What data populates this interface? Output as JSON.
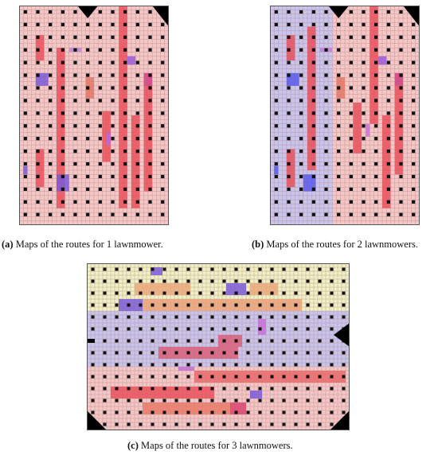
{
  "panels": [
    {
      "id": "a",
      "caption_label": "a",
      "caption_text": "Maps of the routes for 1 lawnmower.",
      "grid_cols": 36,
      "grid_rows": 52,
      "base_color": "#f4c6c6",
      "line_color": "#b28686",
      "obstacles": [
        {
          "type": "tri-down",
          "col": 14,
          "row": 0,
          "w": 5,
          "h": 3
        },
        {
          "type": "tri-ul",
          "col": 32,
          "row": 0,
          "w": 4,
          "h": 5
        }
      ],
      "regions": [],
      "blocks": [
        {
          "col": 24,
          "row": 0,
          "w": 2,
          "h": 48,
          "color": "#e8505a"
        },
        {
          "col": 9,
          "row": 10,
          "w": 2,
          "h": 38,
          "color": "#e8505a"
        },
        {
          "col": 4,
          "row": 7,
          "w": 2,
          "h": 6,
          "color": "#e8505a"
        },
        {
          "col": 4,
          "row": 34,
          "w": 2,
          "h": 9,
          "color": "#e8505a"
        },
        {
          "col": 20,
          "row": 25,
          "w": 2,
          "h": 12,
          "color": "#e8505a"
        },
        {
          "col": 27,
          "row": 26,
          "w": 2,
          "h": 22,
          "color": "#e8505a"
        },
        {
          "col": 30,
          "row": 16,
          "w": 2,
          "h": 28,
          "color": "#e8505a"
        },
        {
          "col": 16,
          "row": 17,
          "w": 2,
          "h": 5,
          "color": "#e07565"
        },
        {
          "col": 4,
          "row": 16,
          "w": 3,
          "h": 3,
          "color": "#7a5ad8"
        },
        {
          "col": 9,
          "row": 40,
          "w": 3,
          "h": 4,
          "color": "#7a5ad8"
        },
        {
          "col": 1,
          "row": 38,
          "w": 1,
          "h": 2,
          "color": "#7a5ad8"
        },
        {
          "col": 12,
          "row": 10,
          "w": 3,
          "h": 1,
          "color": "#c080d8"
        },
        {
          "col": 26,
          "row": 12,
          "w": 2,
          "h": 2,
          "color": "#9a5ad8"
        },
        {
          "col": 30,
          "row": 16,
          "w": 2,
          "h": 3,
          "color": "#d05090"
        },
        {
          "col": 21,
          "row": 30,
          "w": 1,
          "h": 3,
          "color": "#b86ad8"
        }
      ]
    },
    {
      "id": "b",
      "caption_label": "b",
      "caption_text": "Maps of the routes for 2 lawnmowers.",
      "grid_cols": 36,
      "grid_rows": 52,
      "base_color": "#f4c6c6",
      "line_color": "#b28686",
      "obstacles": [
        {
          "type": "tri-down",
          "col": 14,
          "row": 0,
          "w": 5,
          "h": 3
        },
        {
          "type": "tri-ul",
          "col": 32,
          "row": 0,
          "w": 4,
          "h": 5
        }
      ],
      "regions": [
        {
          "col": 0,
          "row": 0,
          "w": 15,
          "h": 52,
          "color": "#c9c4ec"
        }
      ],
      "blocks": [
        {
          "col": 24,
          "row": 0,
          "w": 2,
          "h": 28,
          "color": "#e8505a"
        },
        {
          "col": 9,
          "row": 5,
          "w": 2,
          "h": 34,
          "color": "#e8505a"
        },
        {
          "col": 4,
          "row": 7,
          "w": 2,
          "h": 6,
          "color": "#e8505a"
        },
        {
          "col": 4,
          "row": 34,
          "w": 2,
          "h": 9,
          "color": "#e8505a"
        },
        {
          "col": 20,
          "row": 23,
          "w": 2,
          "h": 12,
          "color": "#e8505a"
        },
        {
          "col": 27,
          "row": 26,
          "w": 2,
          "h": 22,
          "color": "#e8505a"
        },
        {
          "col": 30,
          "row": 16,
          "w": 2,
          "h": 24,
          "color": "#e8505a"
        },
        {
          "col": 16,
          "row": 17,
          "w": 2,
          "h": 5,
          "color": "#e07565"
        },
        {
          "col": 4,
          "row": 16,
          "w": 3,
          "h": 3,
          "color": "#5a5ae8"
        },
        {
          "col": 8,
          "row": 40,
          "w": 3,
          "h": 4,
          "color": "#5a5ae8"
        },
        {
          "col": 1,
          "row": 38,
          "w": 1,
          "h": 2,
          "color": "#5a5ae8"
        },
        {
          "col": 12,
          "row": 10,
          "w": 3,
          "h": 1,
          "color": "#c080d8"
        },
        {
          "col": 26,
          "row": 12,
          "w": 2,
          "h": 2,
          "color": "#9a5ad8"
        },
        {
          "col": 30,
          "row": 16,
          "w": 2,
          "h": 3,
          "color": "#d05090"
        },
        {
          "col": 23,
          "row": 28,
          "w": 1,
          "h": 3,
          "color": "#c870d8"
        }
      ]
    },
    {
      "id": "c",
      "caption_label": "c",
      "caption_text": "Maps of the routes for 3 lawnmowers.",
      "grid_cols": 66,
      "grid_rows": 42,
      "base_color": "#f4c6c6",
      "line_color": "#b28686",
      "obstacles": [
        {
          "type": "tri-right",
          "col": 62,
          "row": 15,
          "w": 4,
          "h": 6
        },
        {
          "type": "rect",
          "col": 0,
          "row": 19,
          "w": 2,
          "h": 1
        },
        {
          "type": "tri-dl",
          "col": 0,
          "row": 37,
          "w": 5,
          "h": 5
        },
        {
          "type": "tri-dr",
          "col": 61,
          "row": 37,
          "w": 5,
          "h": 5
        }
      ],
      "regions": [
        {
          "col": 0,
          "row": 0,
          "w": 66,
          "h": 12,
          "color": "#eff0c4"
        },
        {
          "col": 0,
          "row": 12,
          "w": 66,
          "h": 14,
          "color": "#c9c4ec"
        },
        {
          "col": 0,
          "row": 26,
          "w": 66,
          "h": 16,
          "color": "#f4c6c6"
        }
      ],
      "blocks": [
        {
          "col": 16,
          "row": 1,
          "w": 3,
          "h": 2,
          "color": "#7a5ad8"
        },
        {
          "col": 12,
          "row": 5,
          "w": 14,
          "h": 3,
          "color": "#e8a87a"
        },
        {
          "col": 41,
          "row": 5,
          "w": 7,
          "h": 3,
          "color": "#e8a87a"
        },
        {
          "col": 35,
          "row": 5,
          "w": 5,
          "h": 3,
          "color": "#7a5ad8"
        },
        {
          "col": 8,
          "row": 9,
          "w": 6,
          "h": 3,
          "color": "#7a5ad8"
        },
        {
          "col": 14,
          "row": 9,
          "w": 40,
          "h": 3,
          "color": "#e8a07a"
        },
        {
          "col": 43,
          "row": 14,
          "w": 2,
          "h": 4,
          "color": "#c870d8"
        },
        {
          "col": 33,
          "row": 18,
          "w": 6,
          "h": 3,
          "color": "#d8607a"
        },
        {
          "col": 18,
          "row": 21,
          "w": 20,
          "h": 3,
          "color": "#d8607a"
        },
        {
          "col": 23,
          "row": 26,
          "w": 4,
          "h": 1,
          "color": "#c070d0"
        },
        {
          "col": 27,
          "row": 27,
          "w": 38,
          "h": 3,
          "color": "#e86a6a"
        },
        {
          "col": 6,
          "row": 31,
          "w": 26,
          "h": 3,
          "color": "#e8505a"
        },
        {
          "col": 41,
          "row": 32,
          "w": 3,
          "h": 2,
          "color": "#7a5ad8"
        },
        {
          "col": 14,
          "row": 35,
          "w": 26,
          "h": 3,
          "color": "#e87a6a"
        },
        {
          "col": 36,
          "row": 35,
          "w": 4,
          "h": 3,
          "color": "#d8507a"
        }
      ]
    }
  ]
}
